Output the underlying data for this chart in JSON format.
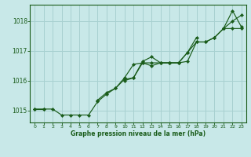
{
  "title": "Graphe pression niveau de la mer (hPa)",
  "background_color": "#c8e8e8",
  "grid_color": "#a8d0d0",
  "line_color": "#1a5c1a",
  "marker_color": "#1a5c1a",
  "xlim": [
    -0.5,
    23.5
  ],
  "ylim": [
    1014.6,
    1018.55
  ],
  "yticks": [
    1015,
    1016,
    1017,
    1018
  ],
  "xticks": [
    0,
    1,
    2,
    3,
    4,
    5,
    6,
    7,
    8,
    9,
    10,
    11,
    12,
    13,
    14,
    15,
    16,
    17,
    18,
    19,
    20,
    21,
    22,
    23
  ],
  "series1": [
    1015.05,
    1015.05,
    1015.05,
    1014.85,
    1014.85,
    1014.85,
    1014.85,
    1015.3,
    1015.55,
    1015.75,
    1016.05,
    1016.1,
    1016.6,
    1016.6,
    1016.6,
    1016.6,
    1016.6,
    1016.95,
    1017.3,
    1017.3,
    1017.45,
    1017.75,
    1017.75,
    1017.75
  ],
  "series2": [
    1015.05,
    1015.05,
    null,
    null,
    null,
    null,
    null,
    null,
    null,
    null,
    1016.0,
    1016.1,
    1016.65,
    1016.8,
    1016.6,
    1016.6,
    1016.6,
    1016.65,
    1017.3,
    1017.3,
    1017.45,
    1017.75,
    1018.35,
    1017.8
  ],
  "series3": [
    null,
    null,
    null,
    null,
    null,
    null,
    null,
    1015.35,
    1015.6,
    1015.75,
    1016.1,
    1016.55,
    1016.6,
    1016.5,
    1016.6,
    1016.6,
    1016.6,
    1016.95,
    1017.45,
    null,
    null,
    1017.75,
    1018.0,
    1018.2
  ]
}
